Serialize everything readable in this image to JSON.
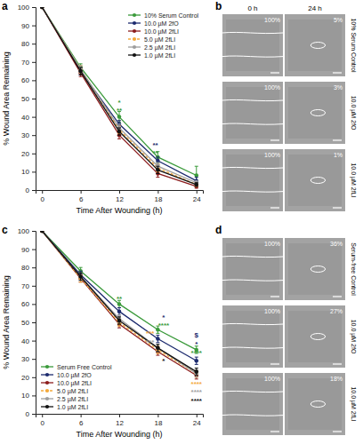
{
  "chart_data": [
    {
      "panel": "a",
      "type": "line",
      "marker": "circle",
      "legend": "top-right",
      "x_label": "Time After Wounding (h)",
      "y_label": "% Wound Area Remaining",
      "x": [
        0,
        6,
        12,
        18,
        24
      ],
      "xlim": [
        -1,
        25
      ],
      "xticks": [
        0,
        6,
        12,
        18,
        24
      ],
      "ylim": [
        0,
        100
      ],
      "yticks": [
        0,
        10,
        20,
        30,
        40,
        50,
        60,
        70,
        80,
        90,
        100
      ],
      "series": [
        {
          "name": "10% Serum Control",
          "color": "#3a9a3a",
          "line_style": "solid",
          "values": [
            100,
            67,
            40,
            18,
            8
          ],
          "errors": [
            0,
            2,
            3,
            3,
            5
          ]
        },
        {
          "name": "10.0 µM 2fO",
          "color": "#1c2a6e",
          "line_style": "solid",
          "values": [
            100,
            65,
            36,
            16,
            5
          ],
          "errors": [
            0,
            2,
            2,
            2,
            2
          ]
        },
        {
          "name": "10.0 µM 2fLI",
          "color": "#8b1c1c",
          "line_style": "solid",
          "values": [
            100,
            64,
            30,
            9,
            2
          ],
          "errors": [
            0,
            2,
            2,
            2,
            1
          ]
        },
        {
          "name": "5.0 µM 2fLI",
          "color": "#f4a93b",
          "line_style": "dashed",
          "values": [
            100,
            66,
            33,
            12,
            3
          ],
          "errors": [
            0,
            2,
            2,
            2,
            1
          ]
        },
        {
          "name": "2.5 µM 2fLI",
          "color": "#9e9e9e",
          "line_style": "solid",
          "values": [
            100,
            66,
            34,
            13,
            4
          ],
          "errors": [
            0,
            2,
            2,
            2,
            1
          ]
        },
        {
          "name": "1.0 µM 2fLI",
          "color": "#111111",
          "line_style": "solid",
          "values": [
            100,
            65,
            32,
            11,
            3
          ],
          "errors": [
            0,
            2,
            2,
            2,
            1
          ]
        }
      ],
      "annotations": [
        {
          "text": "*",
          "x": 12,
          "y": 48,
          "color": "#3a9a3a"
        },
        {
          "text": "**",
          "x": 12,
          "y": 43.5,
          "color": "#3a9a3a"
        },
        {
          "text": "**",
          "x": 17.6,
          "y": 25,
          "color": "#1c2a6e"
        },
        {
          "text": "**",
          "x": 17.6,
          "y": 20.5,
          "color": "#3a9a3a"
        }
      ]
    },
    {
      "panel": "c",
      "type": "line",
      "marker": "circle",
      "legend": "bottom-left",
      "x_label": "Time After Wounding (h)",
      "y_label": "% Wound Area Remaining",
      "x": [
        0,
        6,
        12,
        18,
        24
      ],
      "xlim": [
        -1,
        25
      ],
      "xticks": [
        0,
        6,
        12,
        18,
        24
      ],
      "ylim": [
        0,
        100
      ],
      "yticks": [
        0,
        10,
        20,
        30,
        40,
        50,
        60,
        70,
        80,
        90,
        100
      ],
      "series": [
        {
          "name": "Serum Free Control",
          "color": "#3a9a3a",
          "line_style": "solid",
          "values": [
            100,
            78,
            60,
            46,
            35
          ],
          "errors": [
            0,
            2,
            2,
            2,
            2
          ]
        },
        {
          "name": "10.0 µM 2fO",
          "color": "#1c2a6e",
          "line_style": "solid",
          "values": [
            100,
            76,
            56,
            41,
            29
          ],
          "errors": [
            0,
            2,
            2,
            2,
            2
          ]
        },
        {
          "name": "10.0 µM 2fLI",
          "color": "#8b1c1c",
          "line_style": "solid",
          "values": [
            100,
            74,
            49,
            34,
            21
          ],
          "errors": [
            0,
            2,
            2,
            2,
            2
          ]
        },
        {
          "name": "5.0 µM 2fLI",
          "color": "#f4a93b",
          "line_style": "dashed",
          "values": [
            100,
            74,
            50,
            35,
            22
          ],
          "errors": [
            0,
            2,
            2,
            2,
            2
          ]
        },
        {
          "name": "2.5 µM 2fLI",
          "color": "#9e9e9e",
          "line_style": "solid",
          "values": [
            100,
            75,
            52,
            36,
            22
          ],
          "errors": [
            0,
            2,
            2,
            2,
            2
          ]
        },
        {
          "name": "1.0 µM 2fLI",
          "color": "#111111",
          "line_style": "solid",
          "values": [
            100,
            75,
            51,
            36,
            23
          ],
          "errors": [
            0,
            2,
            2,
            2,
            2
          ]
        }
      ],
      "annotations": [
        {
          "text": "**",
          "x": 12,
          "y": 63,
          "color": "#3a9a3a"
        },
        {
          "text": "*",
          "x": 18.9,
          "y": 53,
          "color": "#1c2a6e"
        },
        {
          "text": "****",
          "x": 18.9,
          "y": 48.5,
          "color": "#3a9a3a"
        },
        {
          "text": "***",
          "x": 16.8,
          "y": 44,
          "color": "#f4a93b"
        },
        {
          "text": "***",
          "x": 16.8,
          "y": 39.5,
          "color": "#9e9e9e"
        },
        {
          "text": "*",
          "x": 18.9,
          "y": 29,
          "color": "#111111"
        },
        {
          "text": "$",
          "x": 24,
          "y": 43,
          "color": "#1c2a6e"
        },
        {
          "text": "*",
          "x": 24,
          "y": 38.5,
          "color": "#1c2a6e"
        },
        {
          "text": "****",
          "x": 24,
          "y": 33.5,
          "color": "#3a9a3a"
        },
        {
          "text": "****",
          "x": 24,
          "y": 16.5,
          "color": "#f4a93b"
        },
        {
          "text": "****",
          "x": 24,
          "y": 12,
          "color": "#9e9e9e"
        },
        {
          "text": "****",
          "x": 24,
          "y": 7.5,
          "color": "#111111"
        }
      ]
    }
  ],
  "image_panels": [
    {
      "panel": "b",
      "columns": [
        "0 h",
        "24 h"
      ],
      "rows": [
        {
          "label": "10% Serum Control",
          "values": [
            "100%",
            "5%"
          ]
        },
        {
          "label": "10.0 µM 2fO",
          "values": [
            "100%",
            "3%"
          ]
        },
        {
          "label": "10.0 µM 2fLI",
          "values": [
            "100%",
            "1%"
          ]
        }
      ]
    },
    {
      "panel": "d",
      "rows": [
        {
          "label": "Serum-free Control",
          "values": [
            "100%",
            "36%"
          ]
        },
        {
          "label": "10.0 µM 2fO",
          "values": [
            "100%",
            "27%"
          ]
        },
        {
          "label": "10.0 µM 2fLI",
          "values": [
            "100%",
            "18%"
          ]
        }
      ]
    }
  ]
}
